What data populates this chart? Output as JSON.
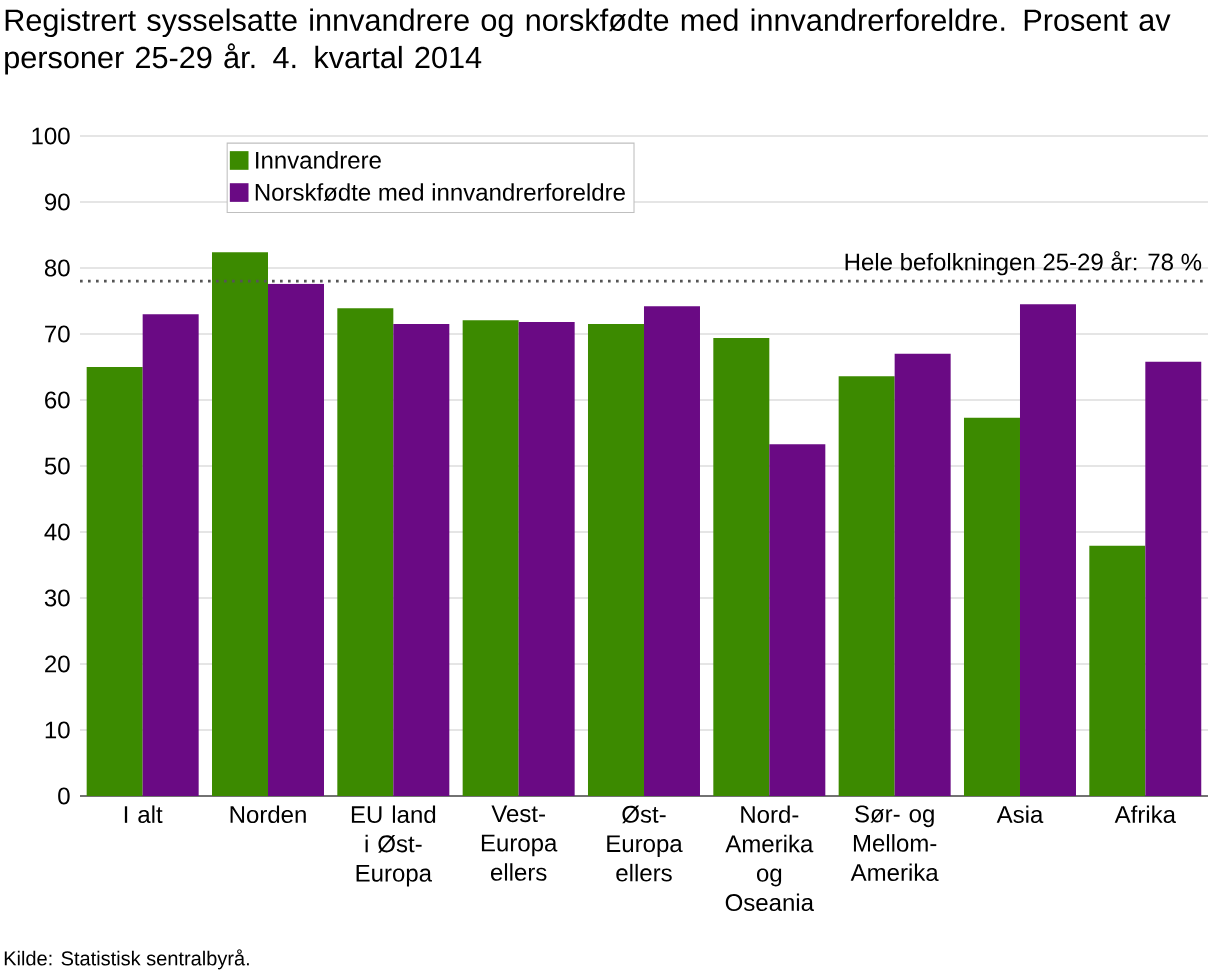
{
  "chart_data": {
    "type": "bar",
    "title": "Registrert sysselsatte innvandrere og norskfødte med innvandrerforeldre. Prosent av personer 25-29 år. 4. kvartal 2014",
    "categories": [
      "I alt",
      "Norden",
      "EU land i Øst-Europa",
      "Vest-Europa ellers",
      "Øst-Europa ellers",
      "Nord-Amerika og Oseania",
      "Sør- og Mellom-Amerika",
      "Asia",
      "Afrika"
    ],
    "series": [
      {
        "name": "Innvandrere",
        "color": "#3c8a00",
        "values": [
          65,
          82.4,
          73.9,
          72.1,
          71.5,
          69.4,
          63.6,
          57.3,
          37.9
        ]
      },
      {
        "name": "Norskfødte med innvandrerforeldre",
        "color": "#6a0a84",
        "values": [
          73,
          77.6,
          71.5,
          71.8,
          74.2,
          53.3,
          67,
          74.5,
          65.8
        ]
      }
    ],
    "ylim": [
      0,
      100
    ],
    "yticks": [
      0,
      10,
      20,
      30,
      40,
      50,
      60,
      70,
      80,
      90,
      100
    ],
    "grid": "y",
    "legend": "top left",
    "ref_lines": [
      {
        "axis": "y",
        "value": 78,
        "label": "Hele befolkningen  25-29  år: 78  %",
        "color": "#555555",
        "line_style": "dotted"
      }
    ],
    "annotations": [
      "Kilde: Statistisk sentralbyrå."
    ]
  }
}
